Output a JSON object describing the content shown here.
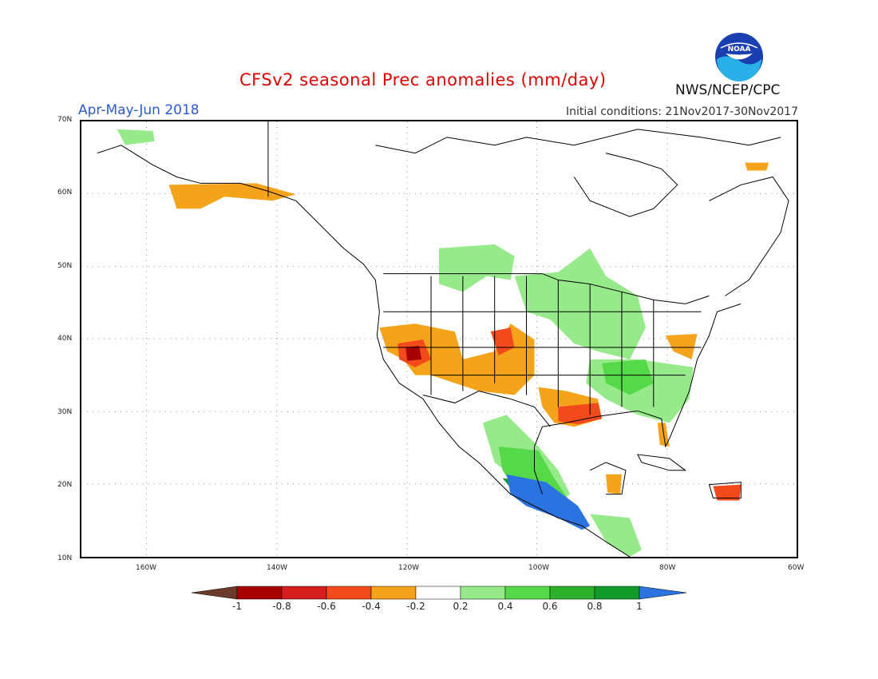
{
  "header": {
    "title": "CFSv2 seasonal Prec anomalies (mm/day)",
    "period": "Apr-May-Jun 2018",
    "initial_conditions": "Initial conditions: 21Nov2017-30Nov2017",
    "agency": "NWS/NCEP/CPC",
    "logo_text": "NOAA"
  },
  "axes": {
    "lat_labels": [
      "70N",
      "60N",
      "50N",
      "40N",
      "30N",
      "20N",
      "10N"
    ],
    "lon_labels": [
      "160W",
      "140W",
      "120W",
      "100W",
      "80W",
      "60W"
    ]
  },
  "legend": {
    "labels": [
      "-1",
      "-0.8",
      "-0.6",
      "-0.4",
      "-0.2",
      "0.2",
      "0.4",
      "0.6",
      "0.8",
      "1"
    ],
    "colors": [
      "#6b3a2a",
      "#a80000",
      "#d41e1e",
      "#f24a1a",
      "#f5a31a",
      "#ffffff",
      "#96ea8a",
      "#55d948",
      "#2db12a",
      "#0f9a2a",
      "#2b73e0"
    ]
  },
  "colors": {
    "dark_brown": "#6b3a2a",
    "dark_red": "#a80000",
    "red": "#d41e1e",
    "red_orange": "#f24a1a",
    "orange": "#f5a31a",
    "light_green": "#96ea8a",
    "green": "#55d948",
    "mid_green": "#2db12a",
    "dark_green": "#0f9a2a",
    "blue": "#2b73e0"
  }
}
